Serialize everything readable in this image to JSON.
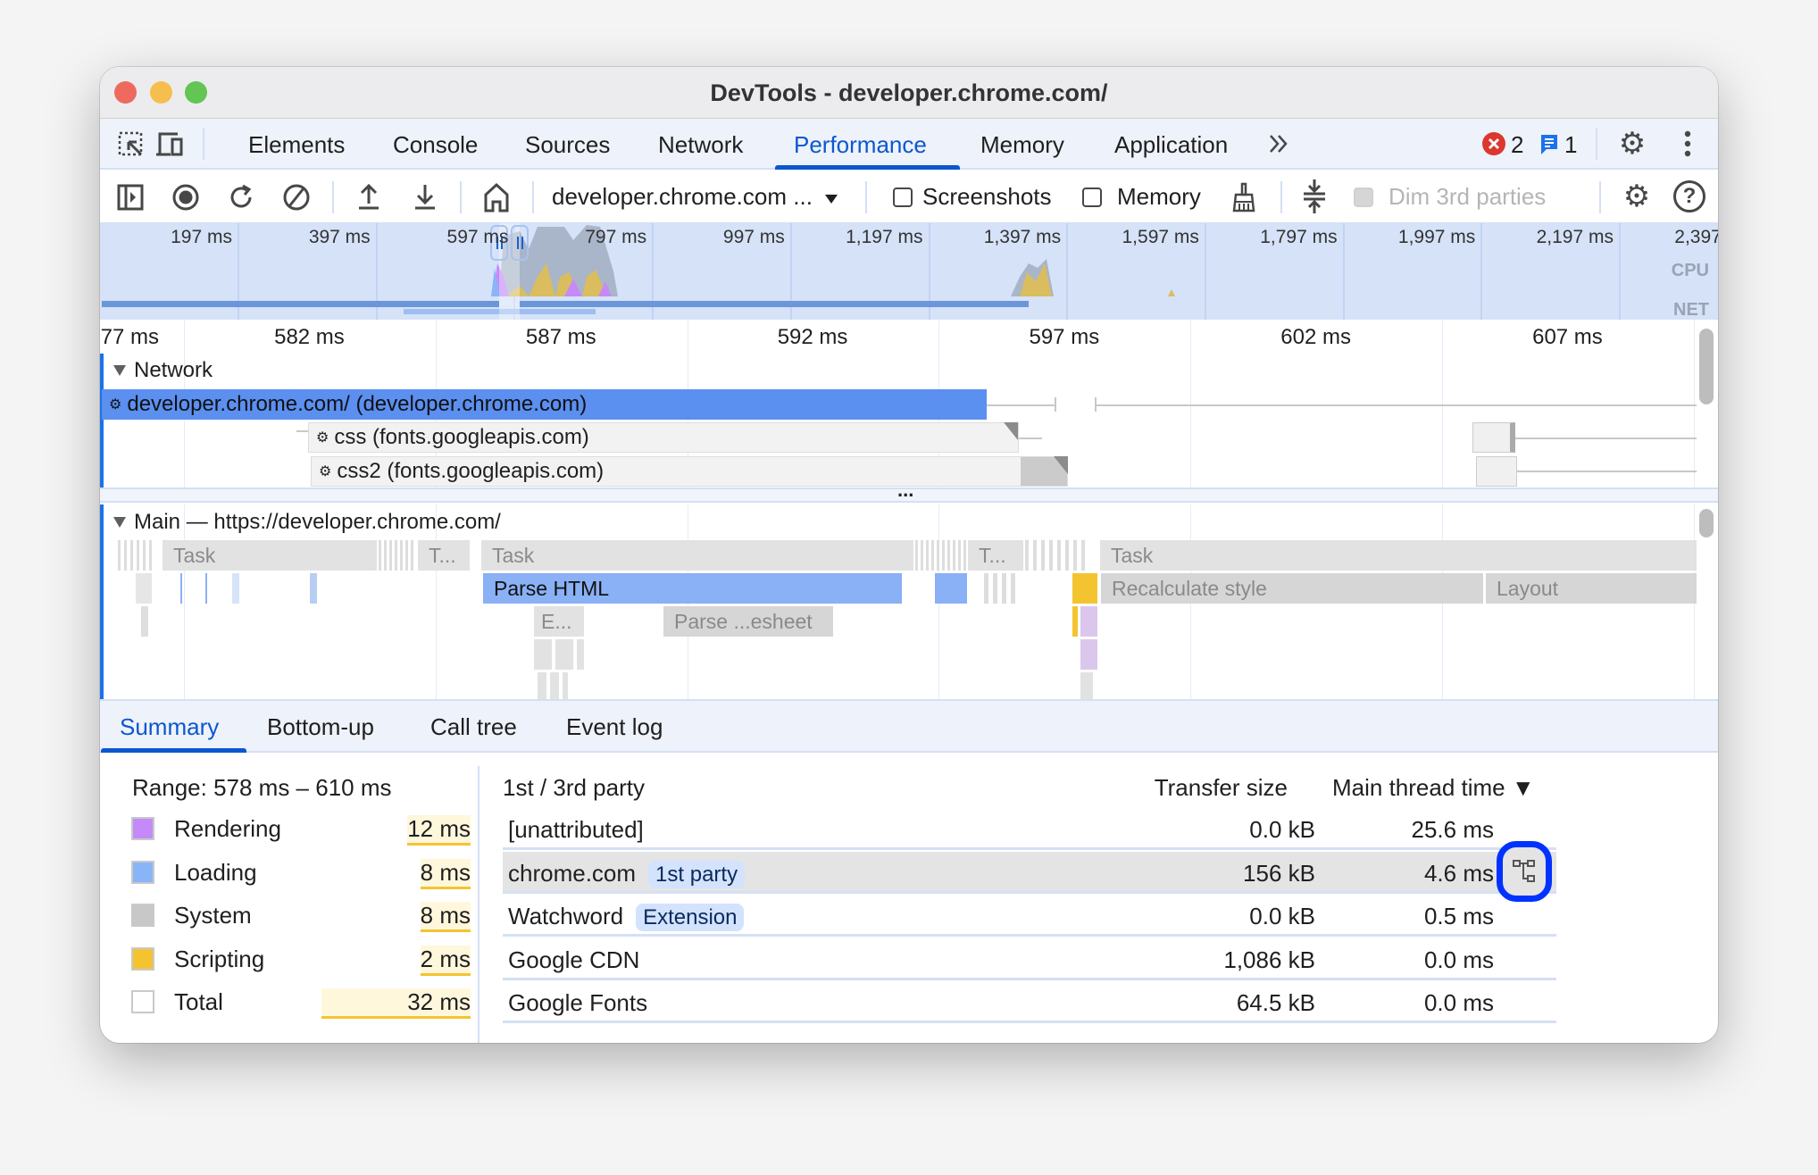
{
  "window": {
    "title": "DevTools - developer.chrome.com/"
  },
  "tabs": [
    {
      "label": "Elements"
    },
    {
      "label": "Console"
    },
    {
      "label": "Sources"
    },
    {
      "label": "Network"
    },
    {
      "label": "Performance",
      "active": true
    },
    {
      "label": "Memory"
    },
    {
      "label": "Application"
    }
  ],
  "status": {
    "errors": "2",
    "messages": "1"
  },
  "toolbar": {
    "target_select": "developer.chrome.com ...",
    "screenshots_label": "Screenshots",
    "screenshots_checked": false,
    "memory_label": "Memory",
    "memory_checked": false,
    "dim_label": "Dim 3rd parties",
    "dim_disabled": true
  },
  "overview": {
    "ticks": [
      "197 ms",
      "397 ms",
      "597 ms",
      "797 ms",
      "997 ms",
      "1,197 ms",
      "1,397 ms",
      "1,597 ms",
      "1,797 ms",
      "1,997 ms",
      "2,197 ms",
      "2,397 ms"
    ],
    "cpu_label": "CPU",
    "net_label": "NET"
  },
  "ruler": {
    "ticks": [
      "577 ms",
      "582 ms",
      "587 ms",
      "592 ms",
      "597 ms",
      "602 ms",
      "607 ms"
    ]
  },
  "network": {
    "header": "Network",
    "requests": [
      {
        "label": "developer.chrome.com/ (developer.chrome.com)"
      },
      {
        "label": "css (fonts.googleapis.com)"
      },
      {
        "label": "css2 (fonts.googleapis.com)"
      }
    ],
    "more": "..."
  },
  "main": {
    "header": "Main — https://developer.chrome.com/",
    "events": {
      "task1": "Task",
      "task_short1": "T...",
      "task2": "Task",
      "task_short2": "T...",
      "task3": "Task",
      "parse_html": "Parse HTML",
      "e": "E...",
      "parse_stylesheet": "Parse ...esheet",
      "recalc": "Recalculate style",
      "layout": "Layout"
    }
  },
  "bottom_tabs": [
    {
      "label": "Summary",
      "active": true
    },
    {
      "label": "Bottom-up"
    },
    {
      "label": "Call tree"
    },
    {
      "label": "Event log"
    }
  ],
  "summary": {
    "range": "Range: 578 ms – 610 ms",
    "categories": [
      {
        "name": "Rendering",
        "value": "12 ms",
        "color": "#c58af9"
      },
      {
        "name": "Loading",
        "value": "8 ms",
        "color": "#8ab4f8"
      },
      {
        "name": "System",
        "value": "8 ms",
        "color": "#c8c8c8"
      },
      {
        "name": "Scripting",
        "value": "2 ms",
        "color": "#f4c430"
      },
      {
        "name": "Total",
        "value": "32 ms",
        "color": "#ffffff"
      }
    ]
  },
  "party_table": {
    "headers": {
      "name": "1st / 3rd party",
      "transfer": "Transfer size",
      "time": "Main thread time ▼"
    },
    "rows": [
      {
        "name": "[unattributed]",
        "badge": "",
        "transfer": "0.0 kB",
        "time": "25.6 ms"
      },
      {
        "name": "chrome.com",
        "badge": "1st party",
        "transfer": "156 kB",
        "time": "4.6 ms",
        "highlighted": true
      },
      {
        "name": "Watchword",
        "badge": "Extension",
        "transfer": "0.0 kB",
        "time": "0.5 ms"
      },
      {
        "name": "Google CDN",
        "badge": "",
        "transfer": "1,086 kB",
        "time": "0.0 ms"
      },
      {
        "name": "Google Fonts",
        "badge": "",
        "transfer": "64.5 kB",
        "time": "0.0 ms"
      }
    ]
  },
  "colors": {
    "accent": "#0b57d0",
    "network_bar": "#5b8ff0",
    "parse_html": "#8ab0f5",
    "highlight_ring": "#0033ff"
  }
}
